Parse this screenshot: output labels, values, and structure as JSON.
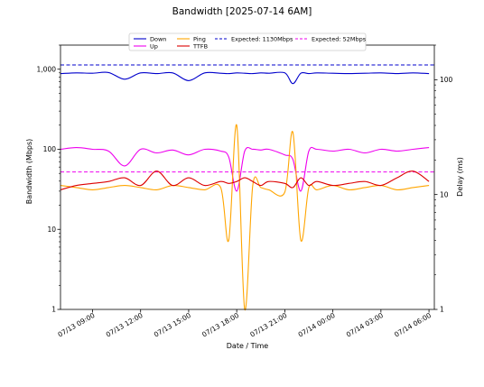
{
  "chart_data": {
    "type": "line",
    "title": "Bandwidth [2025-07-14 6AM]",
    "xlabel": "Date / Time",
    "ylabel": "Bandwidth (Mbps)",
    "y2label": "Delay (ms)",
    "yscale": "log",
    "y2scale": "log",
    "ylim": [
      1,
      2000
    ],
    "y2lim": [
      1,
      200
    ],
    "xlim": [
      "2025-07-13 07:00",
      "2025-07-14 06:20"
    ],
    "xtick_labels": [
      "07/13 09:00",
      "07/13 12:00",
      "07/13 15:00",
      "07/13 18:00",
      "07/13 21:00",
      "07/14 00:00",
      "07/14 03:00",
      "07/14 06:00"
    ],
    "ytick_labels": [
      "1",
      "10",
      "100",
      "1,000"
    ],
    "y2tick_labels": [
      "1",
      "10",
      "100"
    ],
    "legend_position": "top-center",
    "colors": {
      "down": "#0000cc",
      "up": "#ee00ee",
      "ping": "#ffa500",
      "ttfb": "#dd0000"
    },
    "reference_lines": [
      {
        "name": "Expected: 1130Mbps",
        "value": 1130,
        "axis": "left",
        "color": "#0000cc",
        "style": "dashed"
      },
      {
        "name": "Expected: 52Mbps",
        "value": 52,
        "axis": "left",
        "color": "#ee00ee",
        "style": "dashed"
      }
    ],
    "x": [
      "07:00",
      "08:00",
      "09:00",
      "10:00",
      "11:00",
      "12:00",
      "13:00",
      "14:00",
      "15:00",
      "16:00",
      "17:00",
      "17:30",
      "18:00",
      "18:30",
      "19:00",
      "19:30",
      "20:00",
      "21:00",
      "21:30",
      "22:00",
      "22:30",
      "23:00",
      "00:00",
      "01:00",
      "02:00",
      "03:00",
      "04:00",
      "05:00",
      "06:00"
    ],
    "series": [
      {
        "name": "Down",
        "axis": "left",
        "values": [
          880,
          900,
          890,
          910,
          750,
          900,
          880,
          900,
          720,
          900,
          890,
          880,
          900,
          890,
          880,
          900,
          890,
          900,
          660,
          890,
          880,
          900,
          890,
          880,
          890,
          900,
          880,
          900,
          880
        ]
      },
      {
        "name": "Up",
        "axis": "left",
        "values": [
          100,
          105,
          100,
          95,
          62,
          100,
          90,
          98,
          85,
          100,
          95,
          80,
          30,
          95,
          100,
          98,
          100,
          85,
          75,
          30,
          95,
          100,
          95,
          100,
          90,
          100,
          95,
          100,
          105
        ]
      },
      {
        "name": "Ping",
        "axis": "right",
        "values": [
          12,
          11.5,
          11,
          11.5,
          12,
          11.5,
          11,
          12,
          11.5,
          11,
          11.5,
          4,
          40,
          1,
          12,
          11.5,
          11,
          10.5,
          35,
          4,
          11.5,
          11,
          12,
          11,
          11.5,
          12,
          11,
          11.5,
          12
        ]
      },
      {
        "name": "TTFB",
        "axis": "right",
        "values": [
          11,
          12,
          12.5,
          13,
          14,
          12,
          16,
          12,
          14,
          12,
          13,
          12.5,
          13,
          14,
          13,
          12,
          13,
          12.5,
          11.5,
          14,
          12,
          13,
          12,
          12.5,
          13,
          12,
          14,
          16,
          13
        ]
      }
    ]
  }
}
